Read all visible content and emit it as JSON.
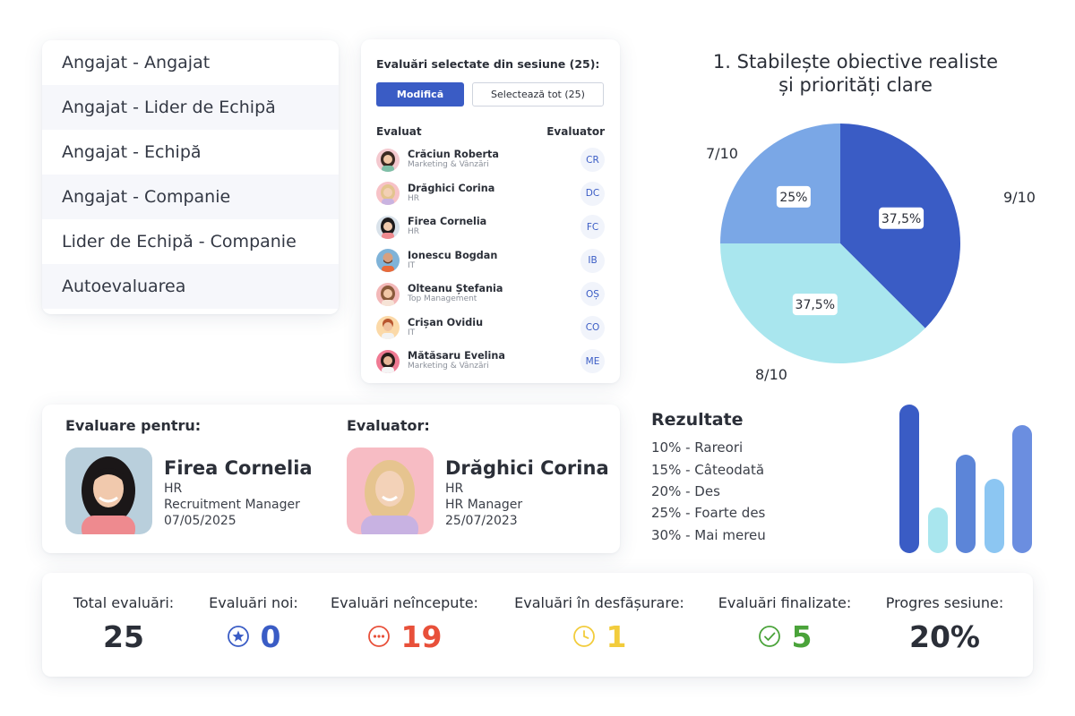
{
  "relations": {
    "items": [
      {
        "label": "Angajat - Angajat"
      },
      {
        "label": "Angajat - Lider de Echipă"
      },
      {
        "label": "Angajat - Echipă"
      },
      {
        "label": "Angajat - Companie"
      },
      {
        "label": "Lider de Echipă - Companie"
      },
      {
        "label": "Autoevaluarea"
      }
    ]
  },
  "selection": {
    "title": "Evaluări selectate din sesiune (25):",
    "modify_label": "Modifică",
    "select_all_label": "Selectează tot (25)",
    "col_evaluated": "Evaluat",
    "col_evaluator": "Evaluator",
    "rows": [
      {
        "name": "Crăciun Roberta",
        "dept": "Marketing & Vânzări",
        "initials": "CR"
      },
      {
        "name": "Drăghici Corina",
        "dept": "HR",
        "initials": "DC"
      },
      {
        "name": "Firea Cornelia",
        "dept": "HR",
        "initials": "FC"
      },
      {
        "name": "Ionescu Bogdan",
        "dept": "IT",
        "initials": "IB"
      },
      {
        "name": "Olteanu Ștefania",
        "dept": "Top Management",
        "initials": "OȘ"
      },
      {
        "name": "Crișan Ovidiu",
        "dept": "IT",
        "initials": "CO"
      },
      {
        "name": "Mătăsaru Evelina",
        "dept": "Marketing & Vânzări",
        "initials": "ME"
      }
    ]
  },
  "pie": {
    "title_line1": "1.   Stabilește obiective realiste",
    "title_line2": "și priorități clare",
    "outer_labels": {
      "a": "9/10",
      "b": "8/10",
      "c": "7/10"
    }
  },
  "chart_data": [
    {
      "type": "pie",
      "slices": [
        {
          "label": "9/10",
          "value": 37.5,
          "display": "37,5%",
          "color": "#3a5cc5"
        },
        {
          "label": "8/10",
          "value": 37.5,
          "display": "37,5%",
          "color": "#a9e6ee"
        },
        {
          "label": "7/10",
          "value": 25,
          "display": "25%",
          "color": "#7aa7e6"
        }
      ]
    },
    {
      "type": "bar",
      "title": "Rezultate",
      "categories": [
        "Rareori",
        "Câteodată",
        "Des",
        "Foarte des",
        "Mai mereu"
      ],
      "values": [
        10,
        15,
        20,
        25,
        30
      ],
      "bars": [
        {
          "value": 100,
          "color": "#3a5cc5"
        },
        {
          "value": 31,
          "color": "#a9e6ee"
        },
        {
          "value": 66,
          "color": "#5c85d8"
        },
        {
          "value": 50,
          "color": "#8cc6f2"
        },
        {
          "value": 86,
          "color": "#6b8ee0"
        }
      ]
    }
  ],
  "evaluation": {
    "for_label": "Evaluare pentru:",
    "evaluator_label": "Evaluator:",
    "evaluated": {
      "name": "Firea Cornelia",
      "dept": "HR",
      "role": "Recruitment Manager",
      "date": "07/05/2025"
    },
    "evaluator": {
      "name": "Drăghici Corina",
      "dept": "HR",
      "role": "HR Manager",
      "date": "25/07/2023"
    }
  },
  "results": {
    "title": "Rezultate",
    "items": [
      {
        "text": "10% - Rareori"
      },
      {
        "text": "15% - Câteodată"
      },
      {
        "text": "20% - Des"
      },
      {
        "text": "25% - Foarte des"
      },
      {
        "text": "30% - Mai mereu"
      }
    ]
  },
  "stats": [
    {
      "label": "Total evaluări:",
      "value": "25",
      "color": "#2b2f38",
      "icon": ""
    },
    {
      "label": "Evaluări noi:",
      "value": "0",
      "color": "#3a5cc5",
      "icon": "star-circle-icon"
    },
    {
      "label": "Evaluări neîncepute:",
      "value": "19",
      "color": "#e8503a",
      "icon": "dots-circle-icon"
    },
    {
      "label": "Evaluări în desfășurare:",
      "value": "1",
      "color": "#f2cc3c",
      "icon": "clock-icon"
    },
    {
      "label": "Evaluări finalizate:",
      "value": "5",
      "color": "#4aa33a",
      "icon": "check-circle-icon"
    },
    {
      "label": "Progres sesiune:",
      "value": "20%",
      "color": "#2b2f38",
      "icon": ""
    }
  ]
}
